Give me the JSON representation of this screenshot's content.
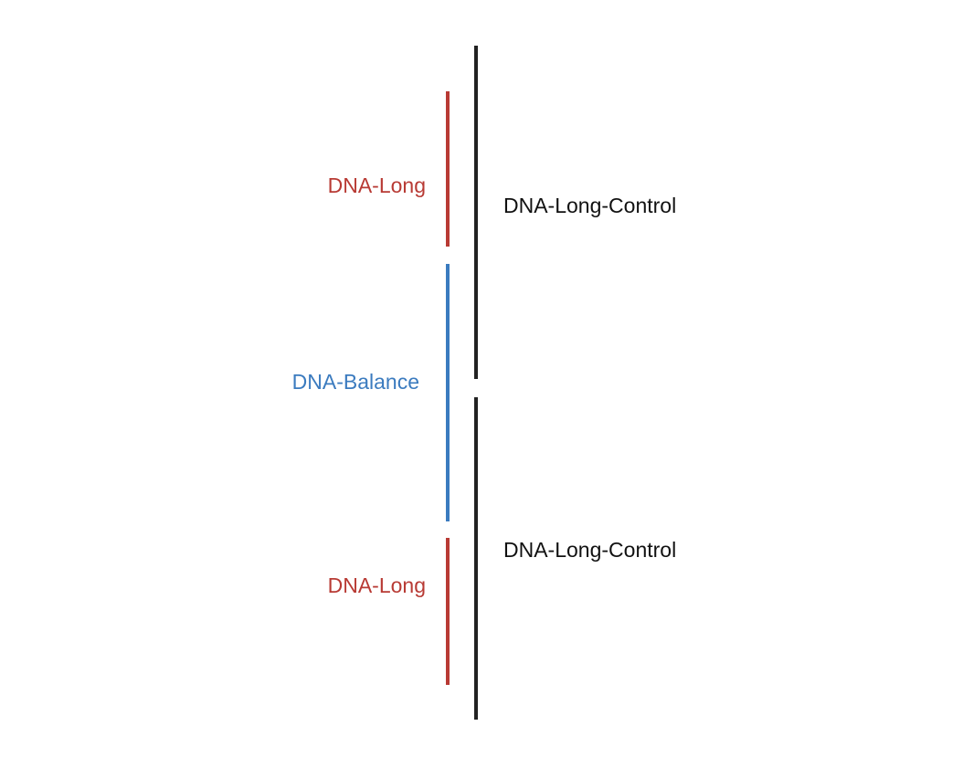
{
  "colors": {
    "long": "#b83a34",
    "balance": "#3b7bbf",
    "control": "#222222",
    "control_text": "#111111"
  },
  "left_track": [
    {
      "label": "DNA-Long",
      "color_key": "long"
    },
    {
      "label": "DNA-Balance",
      "color_key": "balance"
    },
    {
      "label": "DNA-Long",
      "color_key": "long"
    }
  ],
  "right_track": [
    {
      "label": "DNA-Long-Control",
      "color_key": "control"
    },
    {
      "label": "DNA-Long-Control",
      "color_key": "control"
    }
  ]
}
